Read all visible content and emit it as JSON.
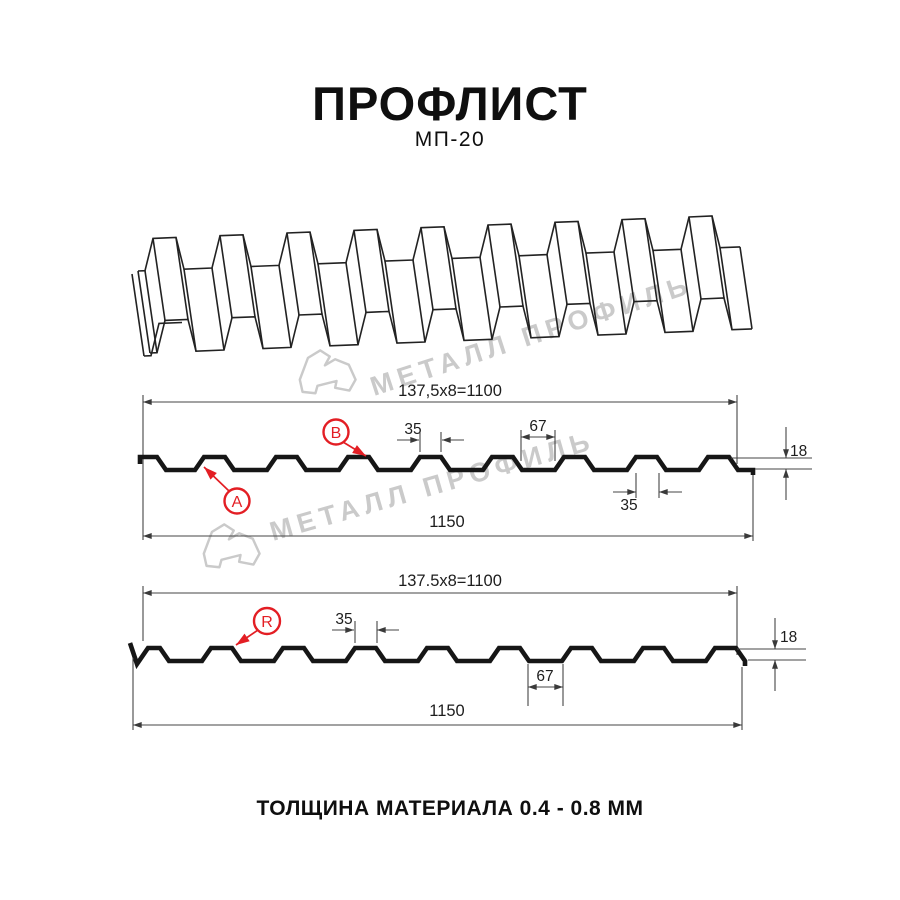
{
  "page": {
    "title": "ПРОФЛИСТ",
    "subtitle": "МП-20",
    "footer": "ТОЛЩИНА МАТЕРИАЛА 0.4 - 0.8 ММ"
  },
  "watermark": {
    "text": "МЕТАЛЛ ПРОФИЛЬ",
    "color": "#cacaca"
  },
  "section1": {
    "formula": "137,5x8=1100",
    "dim35_top": "35",
    "dim67": "67",
    "dim18": "18",
    "dim35_bottom": "35",
    "total": "1150",
    "labels": {
      "a": "A",
      "b": "B"
    }
  },
  "section2": {
    "formula": "137.5x8=1100",
    "dim35": "35",
    "dim67": "67",
    "dim18": "18",
    "total": "1150",
    "labels": {
      "r": "R"
    }
  },
  "colors": {
    "accent_red": "#e31e24",
    "line": "#454545",
    "profile": "#161616"
  }
}
